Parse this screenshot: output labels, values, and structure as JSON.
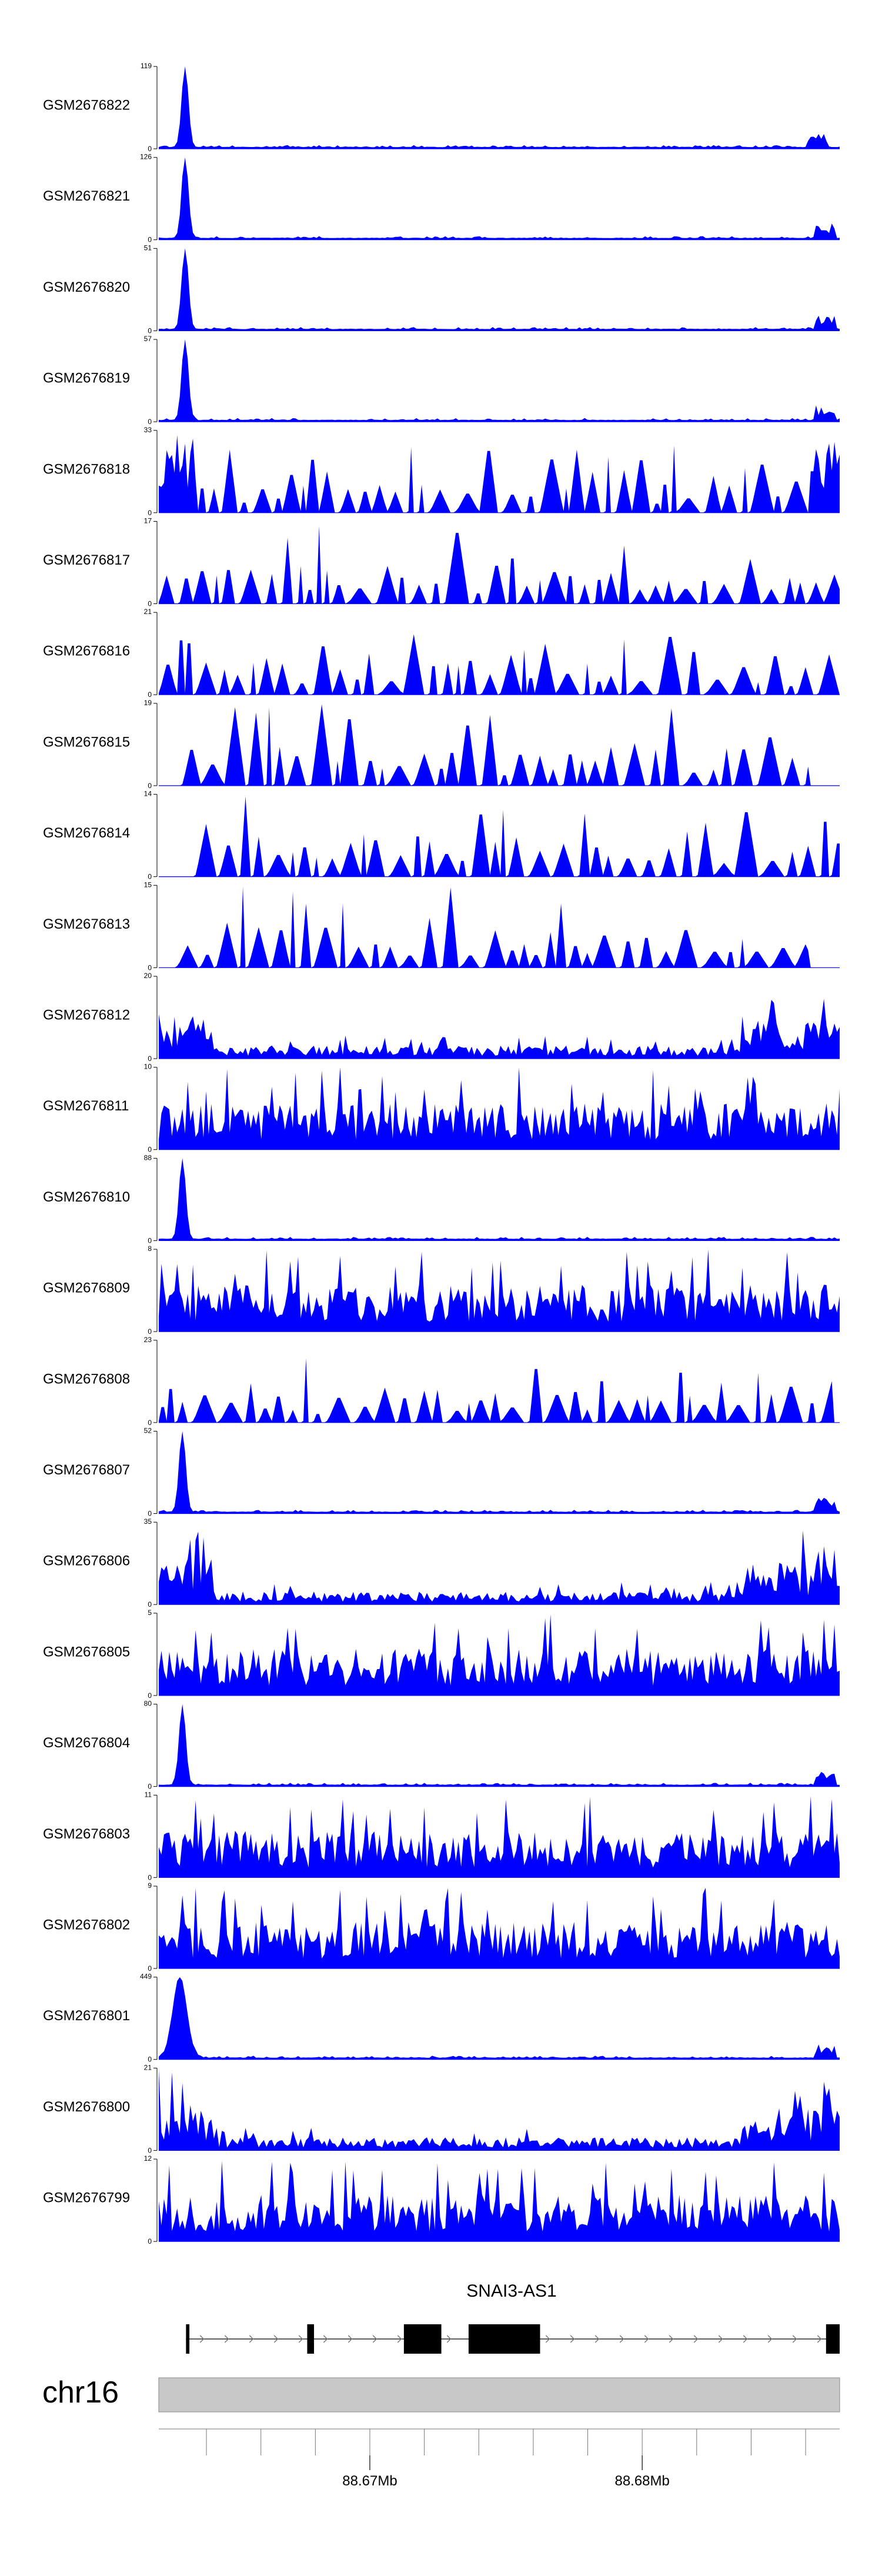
{
  "chart_data": {
    "type": "area",
    "title": "",
    "colors": {
      "signal": "#0000ff",
      "axis": "#000000",
      "ideogram": "#c8c8c8",
      "gene": "#000000"
    },
    "tracks": [
      {
        "name": "GSM2676822",
        "ymax": "119",
        "ymin": "0",
        "pattern": "peak",
        "peak_pos": 0.04,
        "tail_pos": 0.965
      },
      {
        "name": "GSM2676821",
        "ymax": "126",
        "ymin": "0",
        "pattern": "peak",
        "peak_pos": 0.04,
        "tail_pos": 0.975
      },
      {
        "name": "GSM2676820",
        "ymax": "51",
        "ymin": "0",
        "pattern": "peak",
        "peak_pos": 0.04,
        "tail_pos": 0.975
      },
      {
        "name": "GSM2676819",
        "ymax": "57",
        "ymin": "0",
        "pattern": "peak",
        "peak_pos": 0.04,
        "tail_pos": 0.975
      },
      {
        "name": "GSM2676818",
        "ymax": "33",
        "ymin": "0",
        "pattern": "sparse_left_right",
        "start": 0.0,
        "end": 1.0
      },
      {
        "name": "GSM2676817",
        "ymax": "17",
        "ymin": "0",
        "pattern": "sparse",
        "start": 0.0,
        "end": 1.0
      },
      {
        "name": "GSM2676816",
        "ymax": "21",
        "ymin": "0",
        "pattern": "sparse",
        "start": 0.0,
        "end": 1.0
      },
      {
        "name": "GSM2676815",
        "ymax": "19",
        "ymin": "0",
        "pattern": "sparse",
        "start": 0.035,
        "end": 0.955
      },
      {
        "name": "GSM2676814",
        "ymax": "14",
        "ymin": "0",
        "pattern": "sparse",
        "start": 0.055,
        "end": 1.0
      },
      {
        "name": "GSM2676813",
        "ymax": "15",
        "ymin": "0",
        "pattern": "sparse",
        "start": 0.025,
        "end": 0.955
      },
      {
        "name": "GSM2676812",
        "ymax": "20",
        "ymin": "0",
        "pattern": "dense_sides",
        "start": 0.0,
        "end": 1.0
      },
      {
        "name": "GSM2676811",
        "ymax": "10",
        "ymin": "0",
        "pattern": "dense",
        "start": 0.0,
        "end": 1.0
      },
      {
        "name": "GSM2676810",
        "ymax": "88",
        "ymin": "0",
        "pattern": "peak",
        "peak_pos": 0.035,
        "tail_pos": 0.0
      },
      {
        "name": "GSM2676809",
        "ymax": "8",
        "ymin": "0",
        "pattern": "dense",
        "start": 0.0,
        "end": 1.0
      },
      {
        "name": "GSM2676808",
        "ymax": "23",
        "ymin": "0",
        "pattern": "sparse",
        "start": 0.0,
        "end": 0.99
      },
      {
        "name": "GSM2676807",
        "ymax": "52",
        "ymin": "0",
        "pattern": "peak",
        "peak_pos": 0.035,
        "tail_pos": 0.975
      },
      {
        "name": "GSM2676806",
        "ymax": "35",
        "ymin": "0",
        "pattern": "dense_sides",
        "start": 0.0,
        "end": 1.0
      },
      {
        "name": "GSM2676805",
        "ymax": "5",
        "ymin": "0",
        "pattern": "dense",
        "start": 0.0,
        "end": 1.0
      },
      {
        "name": "GSM2676804",
        "ymax": "80",
        "ymin": "0",
        "pattern": "peak",
        "peak_pos": 0.035,
        "tail_pos": 0.975
      },
      {
        "name": "GSM2676803",
        "ymax": "11",
        "ymin": "0",
        "pattern": "dense",
        "start": 0.0,
        "end": 1.0
      },
      {
        "name": "GSM2676802",
        "ymax": "9",
        "ymin": "0",
        "pattern": "dense",
        "start": 0.0,
        "end": 1.0
      },
      {
        "name": "GSM2676801",
        "ymax": "449",
        "ymin": "0",
        "pattern": "peak",
        "peak_pos": 0.03,
        "tail_pos": 0.975
      },
      {
        "name": "GSM2676800",
        "ymax": "21",
        "ymin": "0",
        "pattern": "dense_sides",
        "start": 0.0,
        "end": 1.0
      },
      {
        "name": "GSM2676799",
        "ymax": "12",
        "ymin": "0",
        "pattern": "dense",
        "start": 0.0,
        "end": 1.0
      }
    ],
    "gene": {
      "name": "SNAI3-AS1",
      "exons_fraction": [
        [
          0.04,
          0.045
        ],
        [
          0.218,
          0.228
        ],
        [
          0.36,
          0.415
        ],
        [
          0.455,
          0.56
        ],
        [
          0.98,
          1.0
        ]
      ],
      "span_fraction": [
        0.04,
        1.0
      ]
    },
    "ideogram": {
      "chromosome": "chr16",
      "x_axis": {
        "ticks_fraction": [
          0.07,
          0.15,
          0.23,
          0.31,
          0.39,
          0.47,
          0.55,
          0.63,
          0.71,
          0.79,
          0.87,
          0.95
        ],
        "labeled_ticks": [
          {
            "label": "88.67Mb",
            "pos": 0.31
          },
          {
            "label": "88.68Mb",
            "pos": 0.71
          }
        ]
      }
    }
  }
}
